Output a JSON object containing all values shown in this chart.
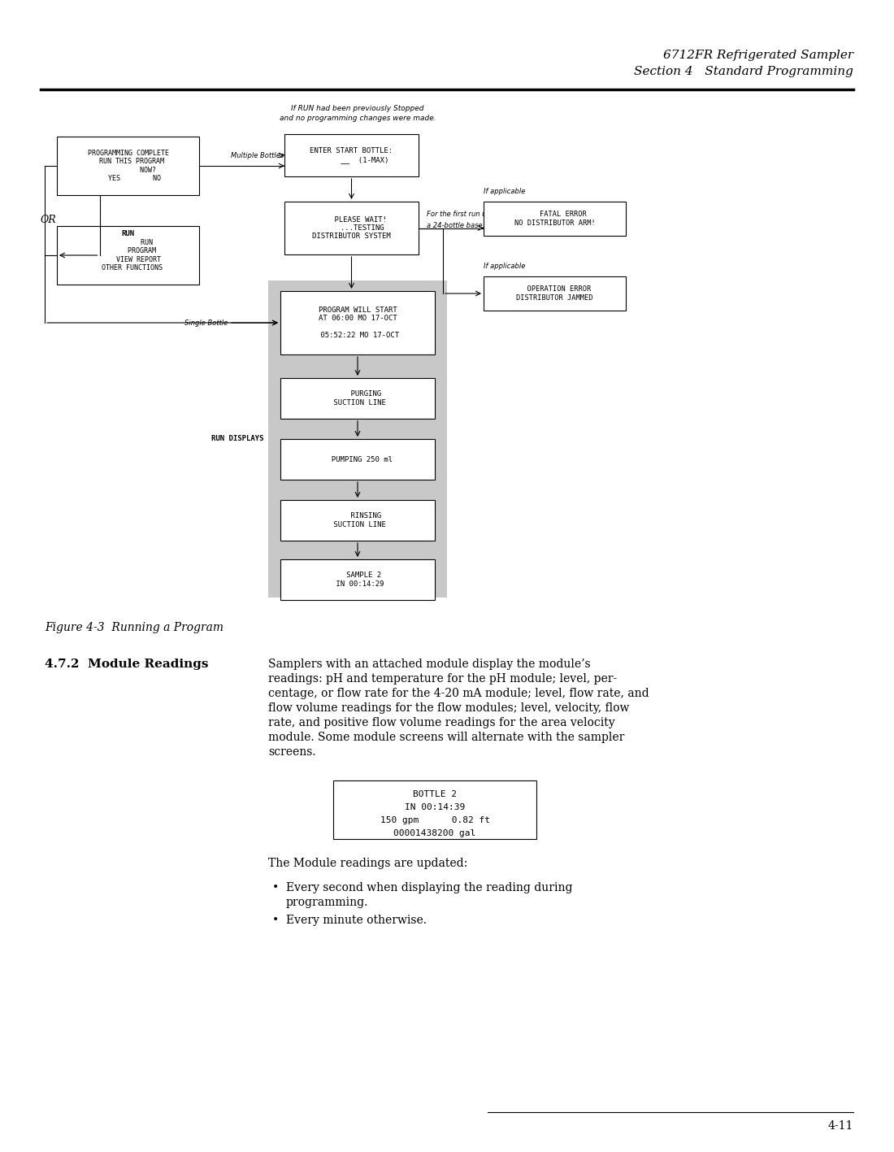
{
  "header_line1": "6712FR Refrigerated Sampler",
  "header_line2": "Section 4   Standard Programming",
  "figure_caption": "Figure 4-3  Running a Program",
  "section_heading": "4.7.2  Module Readings",
  "body_lines": [
    "Samplers with an attached module display the module’s",
    "readings: pH and temperature for the pH module; level, per-",
    "centage, or flow rate for the 4-20 mA module; level, flow rate, and",
    "flow volume readings for the flow modules; level, velocity, flow",
    "rate, and positive flow volume readings for the area velocity",
    "module. Some module screens will alternate with the sampler",
    "screens."
  ],
  "module_update_text": "The Module readings are updated:",
  "bullet1_line1": "Every second when displaying the reading during",
  "bullet1_line2": "programming.",
  "bullet2": "Every minute otherwise.",
  "page_number": "4-11",
  "screen_box_lines": [
    "BOTTLE 2",
    "IN 00:14:39",
    "150 gpm      0.82 ft",
    "00001438200 gal"
  ],
  "bg_color": "#ffffff",
  "gray_bg": "#c8c8c8",
  "annotation1": "If RUN had been previously Stopped",
  "annotation1b": "and no programming changes were made.",
  "annotation2": "For the first run using",
  "annotation2b": "a 24-bottle base.",
  "annotation3": "If applicable",
  "annotation4": "If applicable",
  "label_multiple": "Multiple Bottles",
  "label_single": "Single Bottle",
  "label_run_displays": "RUN DISPLAYS"
}
